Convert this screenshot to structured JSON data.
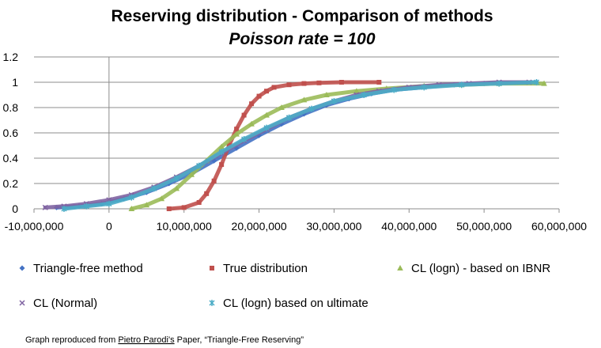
{
  "chart_data": {
    "type": "scatter",
    "title": "Reserving distribution - Comparison of methods",
    "subtitle": "Poisson rate = 100",
    "xlabel": "",
    "ylabel": "",
    "xlim": [
      -10000000,
      60000000
    ],
    "ylim": [
      0,
      1.2
    ],
    "x_ticks": [
      -10000000,
      0,
      10000000,
      20000000,
      30000000,
      40000000,
      50000000,
      60000000
    ],
    "x_tick_labels": [
      "-10,000,000",
      "0",
      "10,000,000",
      "20,000,000",
      "30,000,000",
      "40,000,000",
      "50,000,000",
      "60,000,000"
    ],
    "y_ticks": [
      0,
      0.2,
      0.4,
      0.6,
      0.8,
      1,
      1.2
    ],
    "y_tick_labels": [
      "0",
      "0.2",
      "0.4",
      "0.6",
      "0.8",
      "1",
      "1.2"
    ],
    "grid": "horizontal",
    "legend_position": "bottom",
    "series": [
      {
        "name": "Triangle-free method",
        "marker": "diamond",
        "color": "#4472C4",
        "x": [
          -7000000,
          -4000000,
          -1000000,
          2000000,
          5000000,
          8000000,
          11000000,
          14000000,
          17000000,
          20000000,
          23000000,
          26000000,
          29000000,
          32000000,
          35000000,
          38000000,
          42000000,
          46000000,
          50000000,
          57000000
        ],
        "y": [
          0.01,
          0.02,
          0.04,
          0.08,
          0.13,
          0.2,
          0.28,
          0.38,
          0.48,
          0.58,
          0.67,
          0.75,
          0.82,
          0.87,
          0.91,
          0.94,
          0.96,
          0.98,
          0.99,
          1.0
        ]
      },
      {
        "name": "True distribution",
        "marker": "square",
        "color": "#C0504D",
        "x": [
          8000000,
          10000000,
          12000000,
          13000000,
          14000000,
          15000000,
          16000000,
          17000000,
          18000000,
          19000000,
          20000000,
          21000000,
          22000000,
          24000000,
          26000000,
          28000000,
          31000000,
          36000000
        ],
        "y": [
          0.0,
          0.01,
          0.05,
          0.12,
          0.22,
          0.35,
          0.5,
          0.63,
          0.74,
          0.83,
          0.89,
          0.93,
          0.96,
          0.98,
          0.99,
          0.995,
          1.0,
          1.0
        ]
      },
      {
        "name": "CL (logn) - based on IBNR",
        "marker": "triangle",
        "color": "#9BBB59",
        "x": [
          3000000,
          5000000,
          7000000,
          9000000,
          11000000,
          13000000,
          15000000,
          17000000,
          19000000,
          21000000,
          23000000,
          26000000,
          29000000,
          33000000,
          37000000,
          42000000,
          47000000,
          52000000,
          58000000
        ],
        "y": [
          0.0,
          0.03,
          0.08,
          0.16,
          0.27,
          0.38,
          0.49,
          0.59,
          0.67,
          0.74,
          0.8,
          0.86,
          0.9,
          0.93,
          0.95,
          0.97,
          0.98,
          0.99,
          0.99
        ]
      },
      {
        "name": "CL (Normal)",
        "marker": "x",
        "color": "#8064A2",
        "x": [
          -8500000,
          -6000000,
          -3000000,
          0,
          3000000,
          6000000,
          9000000,
          12000000,
          15000000,
          18000000,
          21000000,
          24000000,
          27000000,
          30000000,
          33000000,
          36000000,
          40000000,
          44000000,
          48000000,
          52000000,
          56000000
        ],
        "y": [
          0.01,
          0.02,
          0.04,
          0.07,
          0.11,
          0.17,
          0.25,
          0.34,
          0.44,
          0.54,
          0.63,
          0.72,
          0.79,
          0.85,
          0.9,
          0.93,
          0.96,
          0.98,
          0.99,
          1.0,
          1.0
        ]
      },
      {
        "name": "CL (logn) based on  ultimate",
        "marker": "star",
        "color": "#4BACC6",
        "x": [
          -6000000,
          -3000000,
          0,
          3000000,
          6000000,
          9000000,
          12000000,
          15000000,
          18000000,
          21000000,
          24000000,
          27000000,
          30000000,
          34000000,
          38000000,
          42000000,
          47000000,
          52000000,
          57000000
        ],
        "y": [
          0.0,
          0.02,
          0.04,
          0.09,
          0.16,
          0.24,
          0.34,
          0.45,
          0.55,
          0.64,
          0.72,
          0.79,
          0.85,
          0.9,
          0.94,
          0.96,
          0.98,
          0.99,
          1.0
        ]
      }
    ]
  },
  "credit": {
    "prefix": "Graph reproduced from ",
    "author": "Pietro Parodi's",
    "suffix": " Paper, “Triangle-Free Reserving”"
  }
}
